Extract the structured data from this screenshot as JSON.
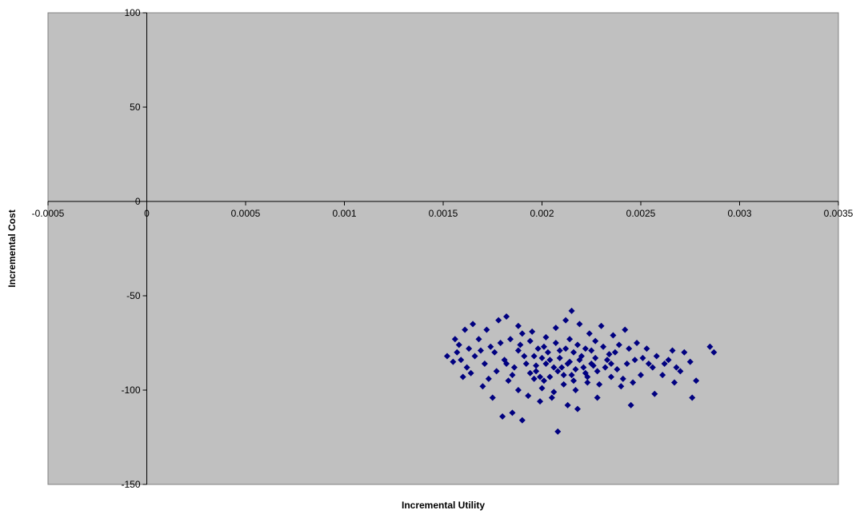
{
  "chart_data": {
    "type": "scatter",
    "title": "",
    "xlabel": "Incremental Utility",
    "ylabel": "Incremental Cost",
    "xlim": [
      -0.0005,
      0.0035
    ],
    "ylim": [
      -150,
      100
    ],
    "x_ticks": [
      -0.0005,
      0,
      0.0005,
      0.001,
      0.0015,
      0.002,
      0.0025,
      0.003,
      0.0035
    ],
    "x_tick_labels": [
      "-0.0005",
      "0",
      "0.0005",
      "0.001",
      "0.0015",
      "0.002",
      "0.0025",
      "0.003",
      "0.0035"
    ],
    "y_ticks": [
      -150,
      -100,
      -50,
      0,
      50,
      100
    ],
    "y_tick_labels": [
      "-150",
      "-100",
      "-50",
      "0",
      "50",
      "100"
    ],
    "grid": false,
    "legend": "none",
    "plot_background": "#c0c0c0",
    "marker_color": "#000080",
    "marker": "diamond",
    "series": [
      {
        "points": [
          [
            0.00165,
            -65
          ],
          [
            0.00215,
            -58
          ],
          [
            0.00285,
            -77
          ],
          [
            0.00287,
            -80
          ],
          [
            0.00275,
            -85
          ],
          [
            0.00278,
            -95
          ],
          [
            0.00276,
            -104
          ],
          [
            0.00257,
            -102
          ],
          [
            0.00208,
            -122
          ],
          [
            0.0018,
            -114
          ],
          [
            0.0019,
            -116
          ],
          [
            0.00185,
            -112
          ],
          [
            0.00228,
            -104
          ],
          [
            0.00245,
            -108
          ],
          [
            0.0017,
            -98
          ],
          [
            0.00175,
            -104
          ],
          [
            0.0016,
            -93
          ],
          [
            0.00155,
            -85
          ],
          [
            0.00157,
            -80
          ],
          [
            0.00162,
            -88
          ],
          [
            0.00168,
            -73
          ],
          [
            0.00172,
            -68
          ],
          [
            0.00178,
            -63
          ],
          [
            0.00182,
            -61
          ],
          [
            0.00188,
            -66
          ],
          [
            0.00195,
            -69
          ],
          [
            0.00202,
            -72
          ],
          [
            0.00207,
            -67
          ],
          [
            0.00212,
            -63
          ],
          [
            0.00219,
            -65
          ],
          [
            0.00224,
            -70
          ],
          [
            0.0023,
            -66
          ],
          [
            0.00236,
            -71
          ],
          [
            0.00242,
            -68
          ],
          [
            0.00248,
            -75
          ],
          [
            0.00253,
            -78
          ],
          [
            0.00258,
            -82
          ],
          [
            0.00262,
            -86
          ],
          [
            0.00266,
            -79
          ],
          [
            0.0027,
            -90
          ],
          [
            0.00198,
            -78
          ],
          [
            0.00203,
            -80
          ],
          [
            0.00209,
            -83
          ],
          [
            0.00214,
            -85
          ],
          [
            0.0022,
            -82
          ],
          [
            0.00226,
            -87
          ],
          [
            0.00233,
            -84
          ],
          [
            0.00238,
            -89
          ],
          [
            0.00243,
            -86
          ],
          [
            0.0025,
            -92
          ],
          [
            0.00192,
            -86
          ],
          [
            0.00197,
            -90
          ],
          [
            0.00204,
            -93
          ],
          [
            0.0021,
            -88
          ],
          [
            0.00216,
            -95
          ],
          [
            0.00222,
            -91
          ],
          [
            0.00229,
            -97
          ],
          [
            0.00235,
            -93
          ],
          [
            0.0024,
            -98
          ],
          [
            0.00246,
            -96
          ],
          [
            0.00176,
            -80
          ],
          [
            0.00181,
            -84
          ],
          [
            0.00186,
            -88
          ],
          [
            0.00191,
            -82
          ],
          [
            0.00196,
            -94
          ],
          [
            0.002,
            -99
          ],
          [
            0.00206,
            -101
          ],
          [
            0.00211,
            -97
          ],
          [
            0.00217,
            -100
          ],
          [
            0.00223,
            -96
          ],
          [
            0.00166,
            -82
          ],
          [
            0.00171,
            -86
          ],
          [
            0.00177,
            -90
          ],
          [
            0.00183,
            -95
          ],
          [
            0.00188,
            -100
          ],
          [
            0.00193,
            -103
          ],
          [
            0.00199,
            -106
          ],
          [
            0.00205,
            -104
          ],
          [
            0.00213,
            -108
          ],
          [
            0.00218,
            -110
          ],
          [
            0.00158,
            -76
          ],
          [
            0.00163,
            -78
          ],
          [
            0.00169,
            -79
          ],
          [
            0.00174,
            -77
          ],
          [
            0.00179,
            -75
          ],
          [
            0.00184,
            -73
          ],
          [
            0.00189,
            -76
          ],
          [
            0.00194,
            -74
          ],
          [
            0.00201,
            -77
          ],
          [
            0.00207,
            -75
          ],
          [
            0.00212,
            -78
          ],
          [
            0.00218,
            -76
          ],
          [
            0.00225,
            -79
          ],
          [
            0.00231,
            -77
          ],
          [
            0.00237,
            -80
          ],
          [
            0.00244,
            -78
          ],
          [
            0.00251,
            -83
          ],
          [
            0.00256,
            -88
          ],
          [
            0.00261,
            -92
          ],
          [
            0.00267,
            -96
          ],
          [
            0.0019,
            -70
          ],
          [
            0.00196,
            -82
          ],
          [
            0.00202,
            -86
          ],
          [
            0.00208,
            -90
          ],
          [
            0.00214,
            -73
          ],
          [
            0.00221,
            -88
          ],
          [
            0.00227,
            -74
          ],
          [
            0.00234,
            -81
          ],
          [
            0.00239,
            -76
          ],
          [
            0.00247,
            -84
          ],
          [
            0.00185,
            -92
          ],
          [
            0.00201,
            -95
          ],
          [
            0.00215,
            -92
          ],
          [
            0.00228,
            -90
          ],
          [
            0.00241,
            -94
          ],
          [
            0.00173,
            -94
          ],
          [
            0.00164,
            -91
          ],
          [
            0.00159,
            -84
          ],
          [
            0.00254,
            -86
          ],
          [
            0.00264,
            -84
          ],
          [
            0.00272,
            -80
          ],
          [
            0.00268,
            -88
          ],
          [
            0.00152,
            -82
          ],
          [
            0.00156,
            -73
          ],
          [
            0.00161,
            -68
          ],
          [
            0.00219,
            -84
          ],
          [
            0.00225,
            -86
          ],
          [
            0.00232,
            -88
          ],
          [
            0.00209,
            -79
          ],
          [
            0.00204,
            -84
          ],
          [
            0.00197,
            -87
          ],
          [
            0.00211,
            -92
          ],
          [
            0.00216,
            -80
          ],
          [
            0.00222,
            -78
          ],
          [
            0.00206,
            -88
          ],
          [
            0.002,
            -83
          ],
          [
            0.00213,
            -86
          ],
          [
            0.00227,
            -83
          ],
          [
            0.00235,
            -86
          ],
          [
            0.00188,
            -79
          ],
          [
            0.00182,
            -86
          ],
          [
            0.00194,
            -91
          ],
          [
            0.00199,
            -93
          ],
          [
            0.00217,
            -89
          ],
          [
            0.00223,
            -93
          ]
        ]
      }
    ]
  }
}
